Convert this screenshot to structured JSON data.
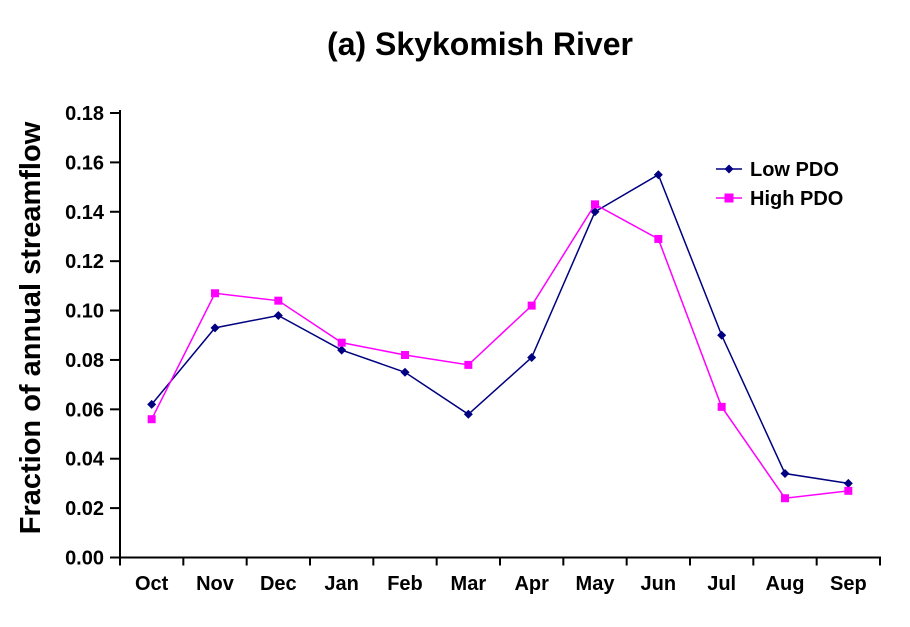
{
  "chart_data": {
    "type": "line",
    "title": "(a)  Skykomish River",
    "ylabel": "Fraction of annual streamflow",
    "xlabel": "",
    "categories": [
      "Oct",
      "Nov",
      "Dec",
      "Jan",
      "Feb",
      "Mar",
      "Apr",
      "May",
      "Jun",
      "Jul",
      "Aug",
      "Sep"
    ],
    "series": [
      {
        "name": "Low PDO",
        "color": "#000080",
        "marker": "diamond",
        "values": [
          0.062,
          0.093,
          0.098,
          0.084,
          0.075,
          0.058,
          0.081,
          0.14,
          0.155,
          0.09,
          0.034,
          0.03
        ]
      },
      {
        "name": "High PDO",
        "color": "#FF00FF",
        "marker": "square",
        "values": [
          0.056,
          0.107,
          0.104,
          0.087,
          0.082,
          0.078,
          0.102,
          0.143,
          0.129,
          0.061,
          0.024,
          0.027
        ]
      }
    ],
    "ylim": [
      0,
      0.18
    ],
    "ytick_step": 0.02,
    "ytick_labels": [
      "0.00",
      "0.02",
      "0.04",
      "0.06",
      "0.08",
      "0.10",
      "0.12",
      "0.14",
      "0.16",
      "0.18"
    ],
    "grid": false,
    "legend_position": "inside-top-right",
    "axis_color": "#000000",
    "background_color": "#ffffff"
  }
}
